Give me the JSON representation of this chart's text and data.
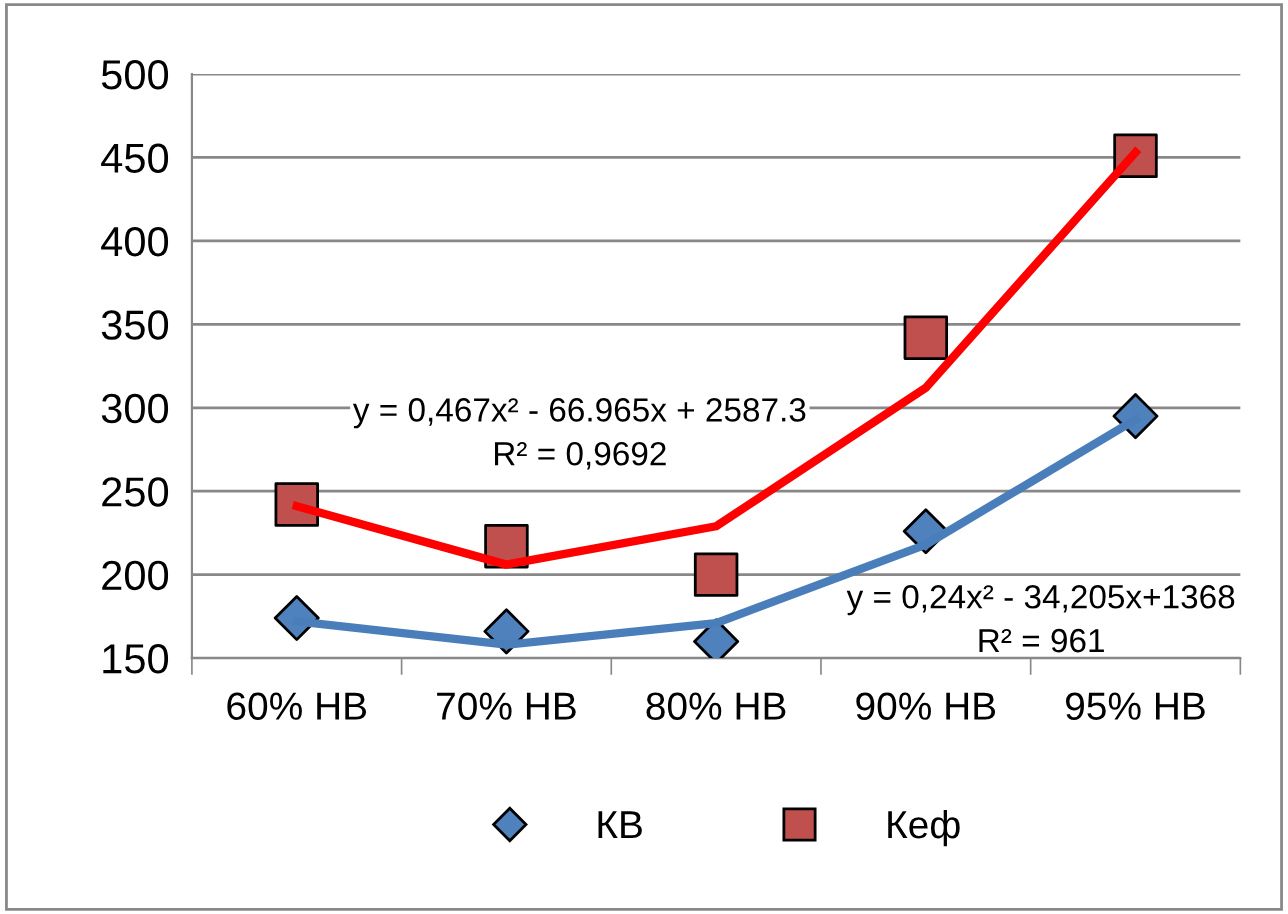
{
  "chart_data": {
    "type": "scatter",
    "categories": [
      "60% НВ",
      "70% НВ",
      "80% НВ",
      "90% НВ",
      "95% НВ"
    ],
    "series": [
      {
        "name": "КВ",
        "marker": "diamond",
        "color": "#4f81bd",
        "values": [
          174,
          166,
          160,
          226,
          295
        ]
      },
      {
        "name": "Кеф",
        "marker": "square",
        "color": "#c0504d",
        "values": [
          242,
          217,
          200,
          342,
          451
        ]
      },
      {
        "type": "line",
        "marker": "none",
        "line_style": "solid",
        "color": "#ff0000",
        "values": [
          241,
          206,
          229,
          312,
          453
        ]
      },
      {
        "type": "line",
        "marker": "none",
        "line_style": "solid",
        "color": "#4a7ebb",
        "values": [
          172,
          158,
          171,
          218,
          293
        ]
      }
    ],
    "ylim": [
      150,
      500
    ],
    "yticks": [
      150,
      200,
      250,
      300,
      350,
      400,
      450,
      500
    ],
    "grid": "y",
    "legend": "bottom",
    "annotations": [
      "y = 0,467x² - 66.965x + 2587.3",
      "R² = 0,9692",
      "y = 0,24x² - 34,205x+1368",
      "R² = 961"
    ]
  }
}
